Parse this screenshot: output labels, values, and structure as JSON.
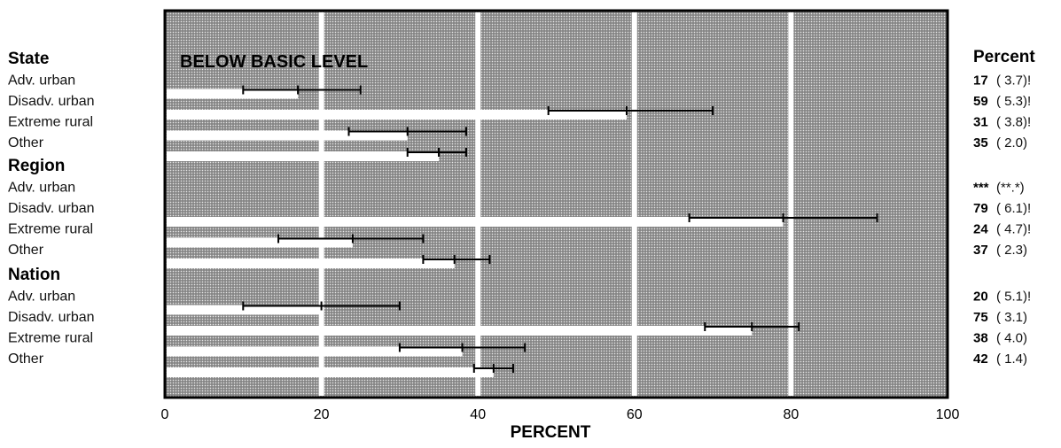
{
  "chart_data": {
    "type": "bar",
    "title": "BELOW BASIC LEVEL",
    "xlabel": "PERCENT",
    "ylabel": "",
    "xlim": [
      0,
      100
    ],
    "xticks": [
      "0",
      "20",
      "40",
      "60",
      "80",
      "100"
    ],
    "grid": true,
    "percent_header": "Percent",
    "groups": [
      {
        "name": "State",
        "rows": [
          {
            "label": "Adv. urban",
            "value": 17,
            "low": 10,
            "high": 25,
            "pct": "17",
            "se": "( 3.7)!"
          },
          {
            "label": "Disadv. urban",
            "value": 59,
            "low": 49,
            "high": 70,
            "pct": "59",
            "se": "( 5.3)!"
          },
          {
            "label": "Extreme rural",
            "value": 31,
            "low": 23.5,
            "high": 38.5,
            "pct": "31",
            "se": "( 3.8)!"
          },
          {
            "label": "Other",
            "value": 35,
            "low": 31,
            "high": 38.5,
            "pct": "35",
            "se": "( 2.0)"
          }
        ]
      },
      {
        "name": "Region",
        "rows": [
          {
            "label": "Adv. urban",
            "value": null,
            "low": null,
            "high": null,
            "pct": "***",
            "se": "(**.*)"
          },
          {
            "label": "Disadv. urban",
            "value": 79,
            "low": 67,
            "high": 91,
            "pct": "79",
            "se": "( 6.1)!"
          },
          {
            "label": "Extreme rural",
            "value": 24,
            "low": 14.5,
            "high": 33,
            "pct": "24",
            "se": "( 4.7)!"
          },
          {
            "label": "Other",
            "value": 37,
            "low": 33,
            "high": 41.5,
            "pct": "37",
            "se": "( 2.3)"
          }
        ]
      },
      {
        "name": "Nation",
        "rows": [
          {
            "label": "Adv. urban",
            "value": 20,
            "low": 10,
            "high": 30,
            "pct": "20",
            "se": "( 5.1)!"
          },
          {
            "label": "Disadv. urban",
            "value": 75,
            "low": 69,
            "high": 81,
            "pct": "75",
            "se": "( 3.1)"
          },
          {
            "label": "Extreme rural",
            "value": 38,
            "low": 30,
            "high": 46,
            "pct": "38",
            "se": "( 4.0)"
          },
          {
            "label": "Other",
            "value": 42,
            "low": 39.5,
            "high": 44.5,
            "pct": "42",
            "se": "( 1.4)"
          }
        ]
      }
    ]
  }
}
